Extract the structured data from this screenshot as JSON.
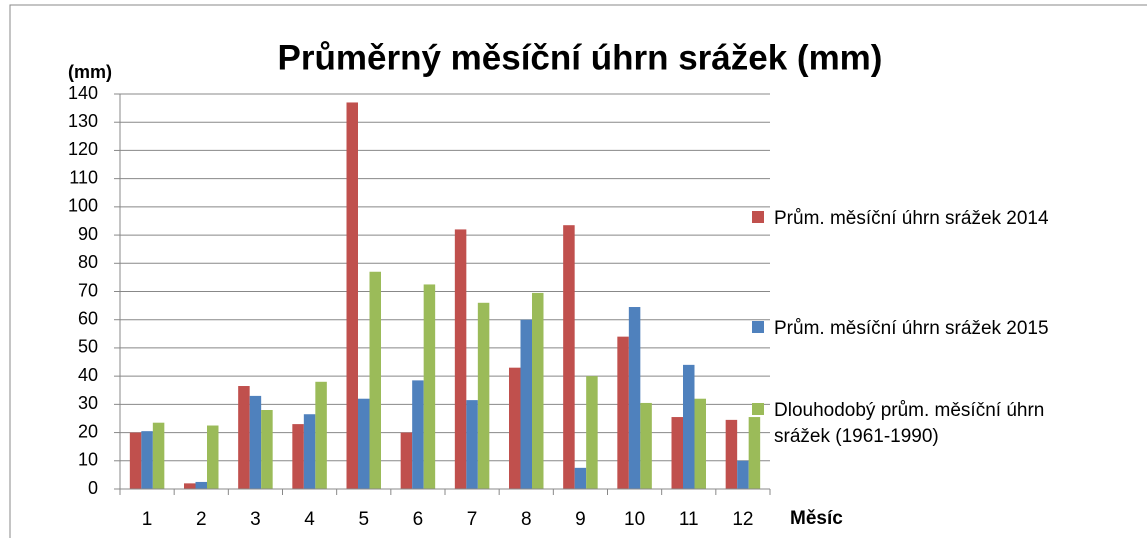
{
  "chart_data": {
    "type": "bar",
    "title": "Průměrný měsíční úhrn srážek (mm)",
    "y_axis_label": "(mm)",
    "x_axis_label": "Měsíc",
    "categories": [
      "1",
      "2",
      "3",
      "4",
      "5",
      "6",
      "7",
      "8",
      "9",
      "10",
      "11",
      "12"
    ],
    "series": [
      {
        "name": "Prům. měsíční úhrn srážek 2014",
        "color": "#c0504d",
        "values": [
          20,
          2,
          36.5,
          23,
          137,
          20,
          92,
          43,
          93.5,
          54,
          25.5,
          24.5
        ]
      },
      {
        "name": "Prům. měsíční úhrn srážek 2015",
        "color": "#4f81bd",
        "values": [
          20.5,
          2.5,
          33,
          26.5,
          32,
          38.5,
          31.5,
          60,
          7.5,
          64.5,
          44,
          10
        ]
      },
      {
        "name": "Dlouhodobý prům. měsíční úhrn srážek (1961-1990)",
        "color": "#9bbb59",
        "values": [
          23.5,
          22.5,
          28,
          38,
          77,
          72.5,
          66,
          69.5,
          40,
          30.5,
          32,
          25.5
        ]
      }
    ],
    "ylim": [
      0,
      140
    ],
    "yticks": [
      0,
      10,
      20,
      30,
      40,
      50,
      60,
      70,
      80,
      90,
      100,
      110,
      120,
      130,
      140
    ],
    "grid": true,
    "legend": "right"
  }
}
